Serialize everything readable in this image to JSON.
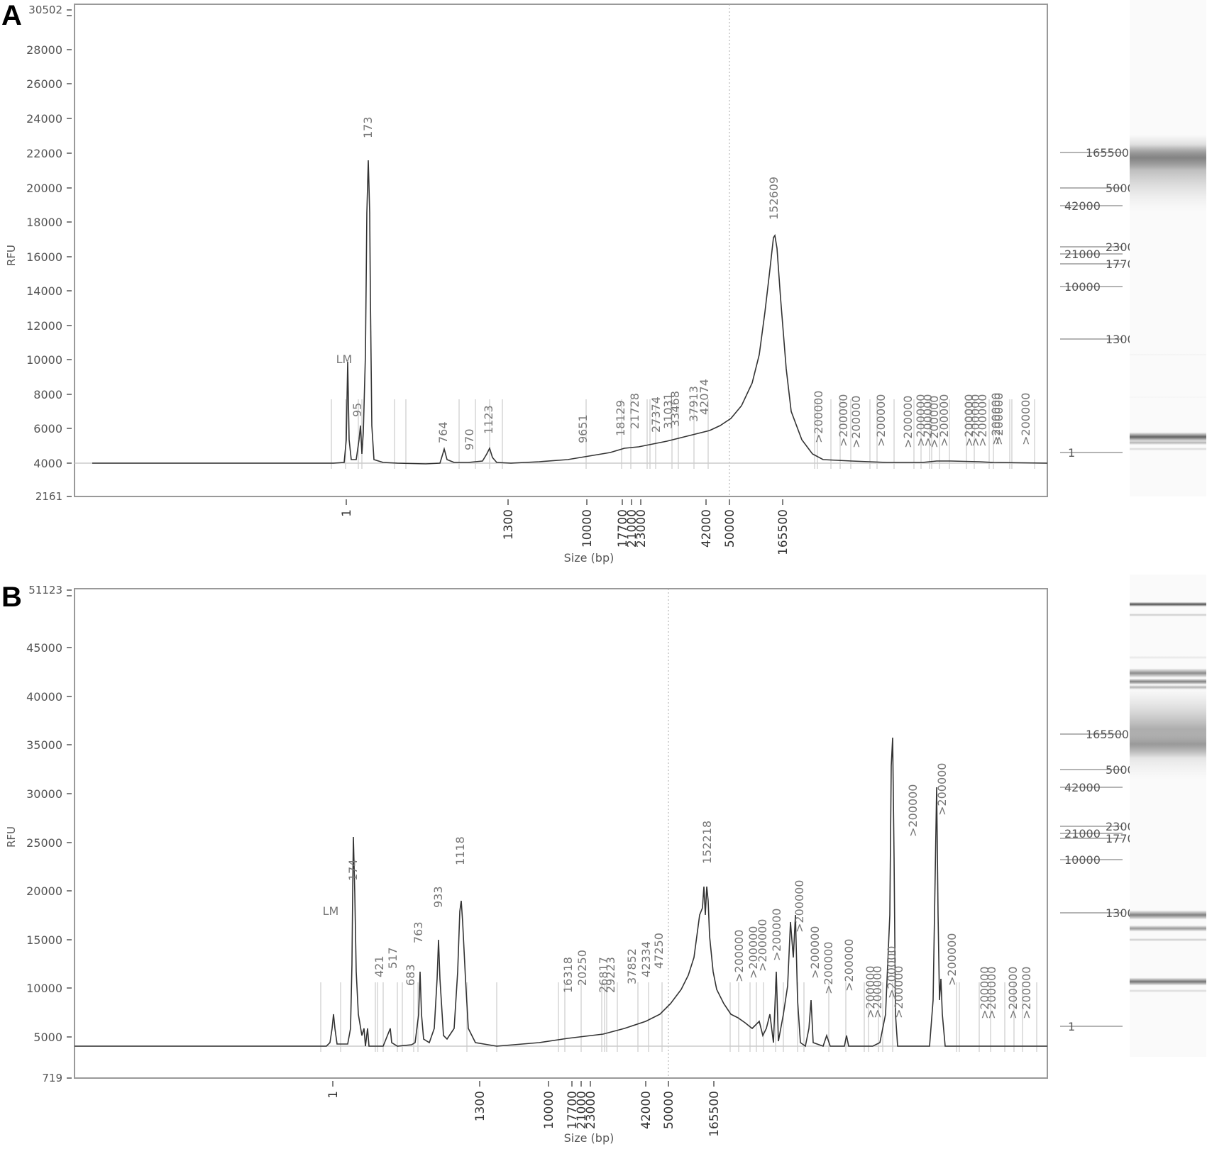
{
  "panels": [
    {
      "id": "A",
      "letter": "A",
      "y_label": "RFU",
      "x_label": "Size (bp)",
      "y_top_label": "30502",
      "y_bottom_label": "2161",
      "y_ticks": [
        "28000",
        "26000",
        "24000",
        "22000",
        "20000",
        "18000",
        "16000",
        "14000",
        "12000",
        "10000",
        "8000",
        "6000",
        "4000"
      ],
      "x_ticks": [
        "1",
        "1300",
        "10000",
        "17700",
        "21000",
        "23000",
        "42000",
        "50000",
        "165500"
      ],
      "peak_labels": [
        "LM",
        "95",
        "173",
        "764",
        "970",
        "1123",
        "9651",
        "18129",
        "21728",
        "27374",
        "31031",
        "33468",
        "37913",
        "42074",
        "152609",
        ">200000",
        ">200000",
        ">200000",
        ">200000",
        ">200000",
        ">200000",
        ">200000",
        ">200000",
        ">200000",
        ">200000",
        ">200000",
        ">200000",
        ">200000",
        ">200000",
        ">200000"
      ],
      "ladder_labels": [
        "165500",
        "50000",
        "42000",
        "23000",
        "21000",
        "17700",
        "10000",
        "1300",
        "1"
      ]
    },
    {
      "id": "B",
      "letter": "B",
      "y_label": "RFU",
      "x_label": "Size (bp)",
      "y_top_label": "51123",
      "y_bottom_label": "719",
      "y_ticks": [
        "45000",
        "40000",
        "35000",
        "30000",
        "25000",
        "20000",
        "15000",
        "10000",
        "5000"
      ],
      "x_ticks": [
        "1",
        "1300",
        "10000",
        "17700",
        "21000",
        "23000",
        "42000",
        "50000",
        "165500"
      ],
      "peak_labels": [
        "LM",
        "174",
        "421",
        "517",
        "683",
        "763",
        "933",
        "1118",
        "16318",
        "20250",
        "26817",
        "29223",
        "37852",
        "42334",
        "47250",
        "152218",
        ">200000",
        ">200000",
        ">200000",
        ">200000",
        ">200000",
        ">200000",
        ">200000",
        ">200000",
        ">200000",
        ">200000",
        ">200000",
        ">200000",
        ">200000",
        ">200000",
        ">200000",
        ">200000",
        ">200000",
        ">200000",
        ">200000"
      ],
      "ladder_labels": [
        "165500",
        "50000",
        "42000",
        "23000",
        "21000",
        "17700",
        "10000",
        "1300",
        "1"
      ]
    }
  ],
  "chart_data": [
    {
      "type": "line",
      "title": "A",
      "xlabel": "Size (bp)",
      "ylabel": "RFU",
      "ylim": [
        2161,
        30502
      ],
      "baseline": 4000,
      "x_ticks": [
        1,
        1300,
        10000,
        17700,
        21000,
        23000,
        42000,
        50000,
        165500
      ],
      "peaks": [
        {
          "label": "LM",
          "size_bp": 1,
          "rfu": 9800
        },
        {
          "label": "95",
          "size_bp": 95,
          "rfu": 6200
        },
        {
          "label": "173",
          "size_bp": 173,
          "rfu": 21700
        },
        {
          "label": "764",
          "size_bp": 764,
          "rfu": 4900
        },
        {
          "label": "970",
          "size_bp": 970,
          "rfu": 4100
        },
        {
          "label": "1123",
          "size_bp": 1123,
          "rfu": 4800
        },
        {
          "label": "9651",
          "size_bp": 9651,
          "rfu": 4500
        },
        {
          "label": "18129",
          "size_bp": 18129,
          "rfu": 4800
        },
        {
          "label": "21728",
          "size_bp": 21728,
          "rfu": 4900
        },
        {
          "label": "27374",
          "size_bp": 27374,
          "rfu": 5000
        },
        {
          "label": "31031",
          "size_bp": 31031,
          "rfu": 5100
        },
        {
          "label": "33468",
          "size_bp": 33468,
          "rfu": 5200
        },
        {
          "label": "37913",
          "size_bp": 37913,
          "rfu": 5400
        },
        {
          "label": "42074",
          "size_bp": 42074,
          "rfu": 5700
        },
        {
          "label": "152609",
          "size_bp": 152609,
          "rfu": 17200
        },
        {
          "label": ">200000",
          "size_bp": 200000,
          "rfu": 4300
        }
      ]
    },
    {
      "type": "line",
      "title": "B",
      "xlabel": "Size (bp)",
      "ylabel": "RFU",
      "ylim": [
        719,
        51123
      ],
      "baseline": 4000,
      "x_ticks": [
        1,
        1300,
        10000,
        17700,
        21000,
        23000,
        42000,
        50000,
        165500
      ],
      "peaks": [
        {
          "label": "LM",
          "size_bp": 1,
          "rfu": 6200
        },
        {
          "label": "174",
          "size_bp": 174,
          "rfu": 19000
        },
        {
          "label": "421",
          "size_bp": 421,
          "rfu": 4300
        },
        {
          "label": "517",
          "size_bp": 517,
          "rfu": 5800
        },
        {
          "label": "683",
          "size_bp": 683,
          "rfu": 4300
        },
        {
          "label": "763",
          "size_bp": 763,
          "rfu": 10000
        },
        {
          "label": "933",
          "size_bp": 933,
          "rfu": 15500
        },
        {
          "label": "1118",
          "size_bp": 1118,
          "rfu": 19500
        },
        {
          "label": "16318",
          "size_bp": 16318,
          "rfu": 5200
        },
        {
          "label": "20250",
          "size_bp": 20250,
          "rfu": 5400
        },
        {
          "label": "26817",
          "size_bp": 26817,
          "rfu": 5500
        },
        {
          "label": "29223",
          "size_bp": 29223,
          "rfu": 5600
        },
        {
          "label": "37852",
          "size_bp": 37852,
          "rfu": 6300
        },
        {
          "label": "42334",
          "size_bp": 42334,
          "rfu": 6800
        },
        {
          "label": "47250",
          "size_bp": 47250,
          "rfu": 7600
        },
        {
          "label": "152218",
          "size_bp": 152218,
          "rfu": 22000
        },
        {
          "label": ">200000",
          "size_bp": 200000,
          "rfu": 32500
        },
        {
          "label": ">200000",
          "size_bp": 200000,
          "rfu": 35500
        }
      ]
    }
  ]
}
